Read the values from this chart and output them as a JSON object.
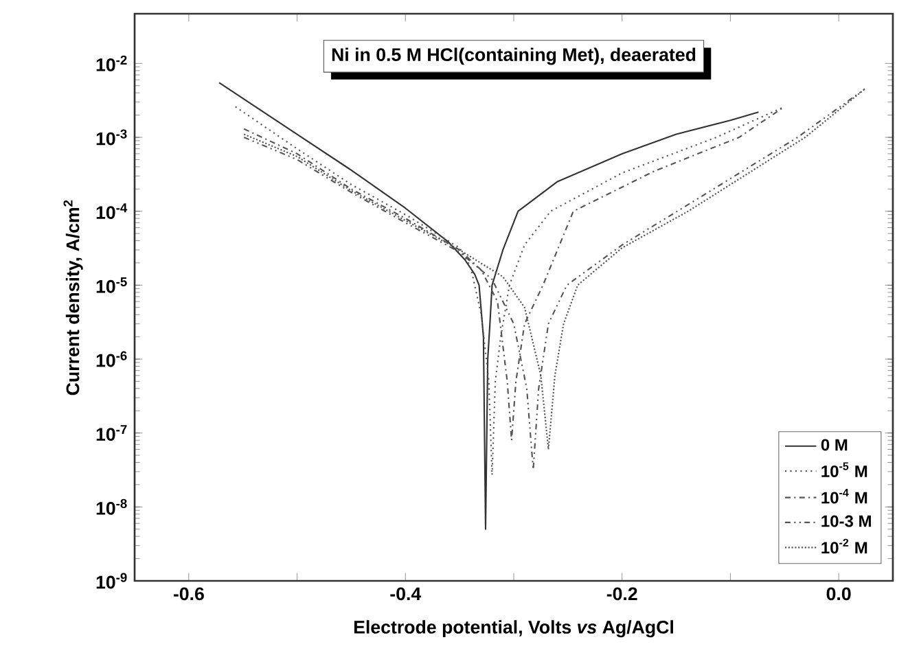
{
  "chart_data": {
    "type": "line",
    "title": "Ni in 0.5 M HCl(containing Met), deaerated",
    "xlabel": "Electrode potential, Volts *vs* Ag/AgCl",
    "ylabel": "Current density, A/cm$^{2}$",
    "log": "y",
    "xlim": [
      -0.65,
      0.05
    ],
    "ylim": [
      1e-09,
      0.047
    ],
    "xticks": [
      {
        "value": -0.6,
        "label": "-0.6"
      },
      {
        "value": -0.5,
        "label": null
      },
      {
        "value": -0.4,
        "label": "-0.4"
      },
      {
        "value": -0.3,
        "label": null
      },
      {
        "value": -0.2,
        "label": "-0.2"
      },
      {
        "value": -0.1,
        "label": null
      },
      {
        "value": 0.0,
        "label": "0.0"
      }
    ],
    "yticks": [
      {
        "value": 1e-09,
        "label": "10$^{-9}$"
      },
      {
        "value": 1e-08,
        "label": "10$^{-8}$"
      },
      {
        "value": 1e-07,
        "label": "10$^{-7}$"
      },
      {
        "value": 1e-06,
        "label": "10$^{-6}$"
      },
      {
        "value": 1e-05,
        "label": "10$^{-5}$"
      },
      {
        "value": 0.0001,
        "label": "10$^{-4}$"
      },
      {
        "value": 0.001,
        "label": "10$^{-3}$"
      },
      {
        "value": 0.01,
        "label": "10$^{-2}$"
      }
    ],
    "legend": "bottom right",
    "grid": false,
    "marker": "none",
    "series": [
      {
        "name": "0 M",
        "color": "#333333",
        "line_style": "solid",
        "x": [
          -0.572,
          -0.5,
          -0.45,
          -0.4,
          -0.36,
          -0.345,
          -0.336,
          -0.332,
          -0.328,
          -0.326,
          -0.324,
          -0.322,
          -0.32,
          -0.31,
          -0.296,
          -0.26,
          -0.2,
          -0.15,
          -0.1,
          -0.074
        ],
        "values": [
          0.0055,
          0.0011,
          0.00036,
          0.00011,
          3.8e-05,
          2.2e-05,
          1.4e-05,
          1e-05,
          2e-06,
          5e-09,
          1e-06,
          3e-06,
          1e-05,
          3e-05,
          0.0001,
          0.00025,
          0.0006,
          0.0011,
          0.0017,
          0.0022
        ]
      },
      {
        "name": "10$^{-5}$ M",
        "color": "#555555",
        "line_style": "dotted",
        "x": [
          -0.557,
          -0.5,
          -0.45,
          -0.4,
          -0.35,
          -0.34,
          -0.33,
          -0.323,
          -0.32,
          -0.317,
          -0.312,
          -0.304,
          -0.29,
          -0.266,
          -0.2,
          -0.113,
          -0.05
        ],
        "values": [
          0.0026,
          0.0007,
          0.00023,
          9e-05,
          3.2e-05,
          1.8e-05,
          4e-06,
          5e-07,
          2.7e-08,
          5e-07,
          2e-06,
          1e-05,
          3.5e-05,
          0.0001,
          0.00033,
          0.001,
          0.0026
        ]
      },
      {
        "name": "10$^{-4}$ M",
        "color": "#555555",
        "line_style": "dashdotted",
        "x": [
          -0.549,
          -0.5,
          -0.45,
          -0.4,
          -0.35,
          -0.33,
          -0.315,
          -0.306,
          -0.302,
          -0.298,
          -0.29,
          -0.273,
          -0.245,
          -0.17,
          -0.092,
          -0.05
        ],
        "values": [
          0.0013,
          0.0006,
          0.0002,
          8e-05,
          3e-05,
          1.6e-05,
          6e-06,
          5e-07,
          8e-08,
          5e-07,
          3e-06,
          1e-05,
          0.0001,
          0.00035,
          0.001,
          0.0026
        ]
      },
      {
        "name": "10-3 M",
        "color": "#555555",
        "line_style": "dashdotdotted",
        "x": [
          -0.549,
          -0.5,
          -0.45,
          -0.4,
          -0.35,
          -0.32,
          -0.3,
          -0.288,
          -0.282,
          -0.277,
          -0.268,
          -0.251,
          -0.2,
          -0.149,
          -0.038,
          0.024
        ],
        "values": [
          0.001,
          0.0005,
          0.00018,
          7e-05,
          2.8e-05,
          1.2e-05,
          3e-06,
          4e-07,
          3.2e-08,
          4e-07,
          3e-06,
          1e-05,
          3.5e-05,
          0.0001,
          0.001,
          0.0045
        ]
      },
      {
        "name": "10$^{-2}$ M",
        "color": "#555555",
        "line_style": "densely dotted",
        "x": [
          -0.549,
          -0.5,
          -0.45,
          -0.4,
          -0.35,
          -0.31,
          -0.29,
          -0.275,
          -0.268,
          -0.262,
          -0.254,
          -0.241,
          -0.2,
          -0.139,
          -0.031,
          0.024
        ],
        "values": [
          0.0011,
          0.00055,
          0.00019,
          7.5e-05,
          3e-05,
          1.3e-05,
          5e-06,
          6e-07,
          6e-08,
          6e-07,
          3e-06,
          1e-05,
          3.2e-05,
          0.0001,
          0.001,
          0.0045
        ]
      }
    ]
  }
}
